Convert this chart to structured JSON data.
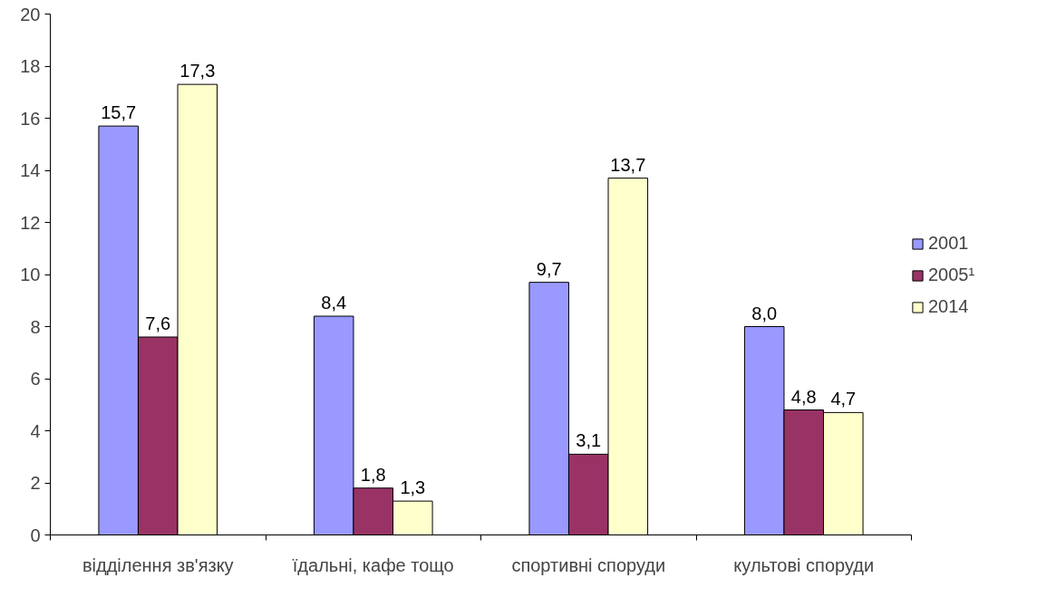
{
  "chart_data": {
    "type": "bar",
    "categories": [
      "відділення зв'язку",
      "їдальні, кафе тощо",
      "спортивні споруди",
      "культові споруди"
    ],
    "series": [
      {
        "name": "2001",
        "color": "#9999ff",
        "values": [
          15.7,
          8.4,
          9.7,
          8.0
        ],
        "value_labels": [
          "15,7",
          "8,4",
          "9,7",
          "8,0"
        ]
      },
      {
        "name": "2005¹",
        "color": "#993366",
        "values": [
          7.6,
          1.8,
          3.1,
          4.8
        ],
        "value_labels": [
          "7,6",
          "1,8",
          "3,1",
          "4,8"
        ]
      },
      {
        "name": "2014",
        "color": "#ffffcc",
        "values": [
          17.3,
          1.3,
          13.7,
          4.7
        ],
        "value_labels": [
          "17,3",
          "1,3",
          "13,7",
          "4,7"
        ]
      }
    ],
    "ylim": [
      0,
      20
    ],
    "yticks": [
      0,
      2,
      4,
      6,
      8,
      10,
      12,
      14,
      16,
      18,
      20
    ],
    "grid": false,
    "legend": "right"
  }
}
